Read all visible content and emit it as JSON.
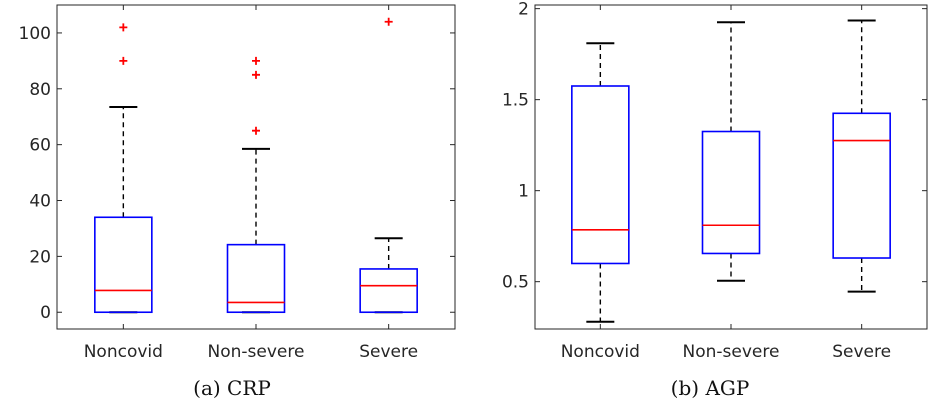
{
  "chart_data": [
    {
      "type": "boxplot",
      "caption": "(a) CRP",
      "categories": [
        "Noncovid",
        "Non-severe",
        "Severe"
      ],
      "ylim": [
        -6,
        110
      ],
      "yticks": [
        0,
        20,
        40,
        60,
        80,
        100
      ],
      "ytick_labels": [
        "0",
        "20",
        "40",
        "60",
        "80",
        "100"
      ],
      "boxes": [
        {
          "category": "Noncovid",
          "whisker_low": 0,
          "q1": 0,
          "median": 7.8,
          "q3": 34,
          "whisker_high": 73.5,
          "outliers": [
            90,
            102
          ]
        },
        {
          "category": "Non-severe",
          "whisker_low": 0,
          "q1": 0,
          "median": 3.5,
          "q3": 24.2,
          "whisker_high": 58.5,
          "outliers": [
            65,
            85,
            90
          ]
        },
        {
          "category": "Severe",
          "whisker_low": 0,
          "q1": 0,
          "median": 9.5,
          "q3": 15.5,
          "whisker_high": 26.5,
          "outliers": [
            104
          ]
        }
      ],
      "grid": false,
      "colors": {
        "box": "#0000ff",
        "median": "#ff0000",
        "whisker": "#000000",
        "outlier": "#ff0000"
      }
    },
    {
      "type": "boxplot",
      "caption": "(b) AGP",
      "categories": [
        "Noncovid",
        "Non-severe",
        "Severe"
      ],
      "ylim": [
        0.24,
        2.02
      ],
      "yticks": [
        0.5,
        1,
        1.5,
        2
      ],
      "ytick_labels": [
        "0.5",
        "1",
        "1.5",
        "2"
      ],
      "boxes": [
        {
          "category": "Noncovid",
          "whisker_low": 0.28,
          "q1": 0.6,
          "median": 0.785,
          "q3": 1.575,
          "whisker_high": 1.81,
          "outliers": []
        },
        {
          "category": "Non-severe",
          "whisker_low": 0.505,
          "q1": 0.655,
          "median": 0.81,
          "q3": 1.325,
          "whisker_high": 1.925,
          "outliers": []
        },
        {
          "category": "Severe",
          "whisker_low": 0.445,
          "q1": 0.63,
          "median": 1.275,
          "q3": 1.425,
          "whisker_high": 1.935,
          "outliers": []
        }
      ],
      "grid": false,
      "colors": {
        "box": "#0000ff",
        "median": "#ff0000",
        "whisker": "#000000",
        "outlier": "#ff0000"
      }
    }
  ]
}
